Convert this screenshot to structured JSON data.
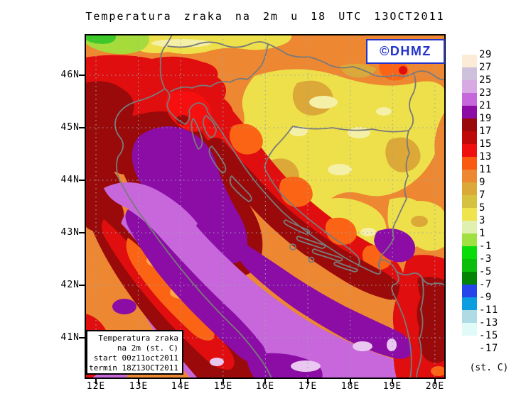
{
  "title": "Temperatura zraka na 2m u 18 UTC 13OCT2011",
  "watermark": {
    "label": "©DHMZ"
  },
  "info_box": {
    "lines": [
      "Temperatura zraka",
      "na 2m (st. C)",
      "start 00z11oct2011",
      "termin 18Z13OCT2011"
    ]
  },
  "axes": {
    "lat_labels": [
      "46N",
      "45N",
      "44N",
      "43N",
      "42N",
      "41N"
    ],
    "lon_labels": [
      "12E",
      "13E",
      "14E",
      "15E",
      "16E",
      "17E",
      "18E",
      "19E",
      "20E"
    ]
  },
  "legend": {
    "unit_label": "(st. C)",
    "tick_labels": [
      "29",
      "27",
      "25",
      "23",
      "21",
      "19",
      "17",
      "15",
      "13",
      "11",
      "9",
      "7",
      "5",
      "3",
      "1",
      "-1",
      "-3",
      "-5",
      "-7",
      "-9",
      "-11",
      "-13",
      "-15",
      "-17"
    ],
    "swatch_colors": [
      "#FCEBD7",
      "#CDC1DC",
      "#D9A9E3",
      "#C667DB",
      "#8C0CA6",
      "#9A0A0A",
      "#C00A0A",
      "#F00F0F",
      "#FA5A0F",
      "#ED8732",
      "#DCA838",
      "#D6C23E",
      "#F0E44C",
      "#DFF0B0",
      "#A0E040",
      "#0ADC0A",
      "#0ABE0A",
      "#048404",
      "#2743EA",
      "#0A9EE0",
      "#AFDCE4",
      "#E0FAF8",
      "#FFFFFF"
    ]
  },
  "colors": {
    "watermark_blue": "#2233cc",
    "border_gray": "#7a7a7a",
    "grid_gray": "#9AA6B0",
    "sea_orchid": "#C767DB",
    "sea_dark_purple": "#8C0CA6",
    "land_orange": "#ED8732"
  }
}
